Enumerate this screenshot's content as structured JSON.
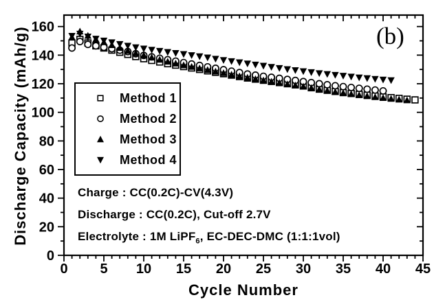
{
  "figure": {
    "panel_label": "(b)"
  },
  "chart_data": {
    "type": "scatter",
    "title": "",
    "xlabel": "Cycle Number",
    "ylabel": "Discharge Capacity (mAh/g)",
    "xlim": [
      0,
      45
    ],
    "ylim": [
      0,
      168
    ],
    "x_major_ticks": [
      0,
      5,
      10,
      15,
      20,
      25,
      30,
      35,
      40,
      45
    ],
    "x_minor_step": 1,
    "y_major_ticks": [
      0,
      20,
      40,
      60,
      80,
      100,
      120,
      140,
      160
    ],
    "y_minor_step": 10,
    "grid": false,
    "legend_position": "upper-left-inside",
    "series": [
      {
        "name": "Method 1",
        "marker": "open-square",
        "x": [
          1,
          2,
          3,
          4,
          5,
          6,
          7,
          8,
          9,
          10,
          11,
          12,
          13,
          14,
          15,
          16,
          17,
          18,
          19,
          20,
          21,
          22,
          23,
          24,
          25,
          26,
          27,
          28,
          29,
          30,
          31,
          32,
          33,
          34,
          35,
          36,
          37,
          38,
          39,
          40,
          41,
          42,
          43,
          44
        ],
        "y": [
          148.5,
          151,
          148.5,
          146.5,
          145,
          143.5,
          142,
          140.5,
          139,
          137.5,
          136.3,
          135.2,
          134,
          133,
          132,
          131,
          130,
          129,
          128,
          127,
          126,
          125,
          124,
          123.2,
          122.4,
          121.6,
          120.8,
          120,
          119.2,
          118.4,
          117.2,
          116.2,
          115.4,
          114.6,
          113.8,
          113.2,
          112.6,
          112,
          111.4,
          110.8,
          110.3,
          109.8,
          109.2,
          108.7
        ]
      },
      {
        "name": "Method 2",
        "marker": "open-circle",
        "x": [
          1,
          2,
          3,
          4,
          5,
          6,
          7,
          8,
          9,
          10,
          11,
          12,
          13,
          14,
          15,
          16,
          17,
          18,
          19,
          20,
          21,
          22,
          23,
          24,
          25,
          26,
          27,
          28,
          29,
          30,
          31,
          32,
          33,
          34,
          35,
          36,
          37,
          38,
          39,
          40
        ],
        "y": [
          145,
          149.5,
          147.5,
          146.5,
          145.5,
          144.5,
          143.5,
          142.5,
          141,
          139.8,
          138.8,
          137.8,
          136.8,
          135.8,
          134.8,
          133.8,
          132.8,
          131.8,
          130.8,
          129.8,
          128.8,
          127.8,
          126.8,
          126,
          125.2,
          124.5,
          123.8,
          123,
          122.3,
          121.5,
          120.8,
          120,
          119.3,
          118.6,
          118,
          117.4,
          116.8,
          116.2,
          115.6,
          115
        ]
      },
      {
        "name": "Method 3",
        "marker": "filled-triangle-up",
        "x": [
          1,
          2,
          3,
          4,
          5,
          6,
          7,
          8,
          9,
          10,
          11,
          12,
          13,
          14,
          15,
          16,
          17,
          18,
          19,
          20,
          21,
          22,
          23,
          24,
          25,
          26,
          27,
          28,
          29,
          30,
          31,
          32,
          33,
          34,
          35,
          36,
          37,
          38,
          39,
          40,
          41,
          42,
          43
        ],
        "y": [
          152.5,
          156.5,
          153.5,
          151,
          149,
          147,
          145,
          143,
          141.3,
          139.8,
          138.3,
          136.8,
          135.4,
          134.1,
          132.9,
          131.8,
          130.7,
          129.6,
          128.5,
          127.4,
          126.3,
          125.2,
          124.2,
          123.2,
          122.3,
          121.4,
          120.5,
          119.6,
          118.8,
          118,
          117,
          116,
          115.1,
          114.2,
          113.4,
          112.7,
          112,
          111.3,
          110.6,
          110,
          109.4,
          108.9,
          108.4
        ]
      },
      {
        "name": "Method 4",
        "marker": "filled-triangle-down",
        "x": [
          1,
          2,
          3,
          4,
          5,
          6,
          7,
          8,
          9,
          10,
          11,
          12,
          13,
          14,
          15,
          16,
          17,
          18,
          19,
          20,
          21,
          22,
          23,
          24,
          25,
          26,
          27,
          28,
          29,
          30,
          31,
          32,
          33,
          34,
          35,
          36,
          37,
          38,
          39,
          40,
          41
        ],
        "y": [
          153.5,
          155,
          153,
          151.5,
          150.2,
          149,
          147.8,
          146.6,
          145.5,
          144.6,
          143.8,
          143,
          142.2,
          141.5,
          140.8,
          140,
          139.2,
          138.4,
          137.5,
          136.6,
          135.8,
          135,
          134.2,
          133.4,
          132.6,
          131.8,
          131,
          130.2,
          129.5,
          128.8,
          128.1,
          127.4,
          126.8,
          126.2,
          125.6,
          125,
          124.4,
          123.9,
          123.4,
          122.9,
          122.5
        ]
      }
    ],
    "annotations": {
      "charge": "Charge : CC(0.2C)-CV(4.3V)",
      "discharge": "Discharge : CC(0.2C), Cut-off 2.7V",
      "electrolyte_prefix": "Electrolyte : 1M LiPF",
      "electrolyte_sub": "6",
      "electrolyte_suffix": ", EC-DEC-DMC (1:1:1vol)"
    },
    "colors": {
      "foreground": "#000000",
      "background": "#ffffff"
    }
  }
}
